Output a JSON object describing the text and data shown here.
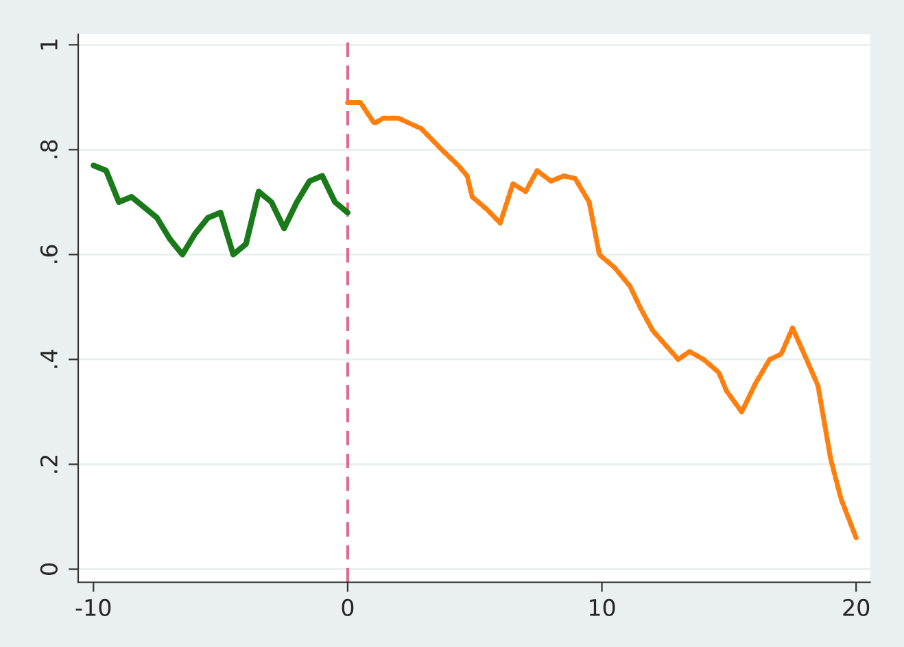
{
  "chart_data": {
    "type": "line",
    "xlim": [
      -10.6,
      20.55
    ],
    "ylim": [
      -0.025,
      1.02
    ],
    "xticks": [
      -10,
      0,
      10,
      20
    ],
    "yticks": [
      {
        "value": 0,
        "label": "0"
      },
      {
        "value": 0.2,
        "label": ".2"
      },
      {
        "value": 0.4,
        "label": ".4"
      },
      {
        "value": 0.6,
        "label": ".6"
      },
      {
        "value": 0.8,
        "label": ".8"
      },
      {
        "value": 1,
        "label": "1"
      }
    ],
    "grid": "y",
    "legend": false,
    "series": [
      {
        "color": "#1a7a1a",
        "line_style": "solid",
        "x": [
          -10,
          -9.5,
          -9,
          -8.5,
          -8,
          -7.5,
          -7,
          -6.5,
          -6,
          -5.5,
          -5,
          -4.5,
          -4,
          -3.5,
          -3,
          -2.5,
          -2,
          -1.5,
          -1,
          -0.5,
          0
        ],
        "values": [
          0.77,
          0.76,
          0.7,
          0.71,
          0.69,
          0.67,
          0.63,
          0.6,
          0.64,
          0.67,
          0.68,
          0.6,
          0.62,
          0.72,
          0.7,
          0.65,
          0.7,
          0.74,
          0.75,
          0.7,
          0.68
        ]
      },
      {
        "color": "#ff7f0e",
        "line_style": "dotted",
        "x": [
          0,
          0.5,
          1.05,
          1.4,
          2.0,
          2.9,
          3.7,
          4.35,
          4.7,
          4.9,
          5.5,
          6.0,
          6.5,
          7.0,
          7.45,
          8.0,
          8.5,
          8.95,
          9.5,
          9.9,
          10.5,
          11.1,
          11.55,
          12.0,
          12.55,
          13.0,
          13.45,
          14.0,
          14.6,
          14.9,
          15.5,
          16.05,
          16.6,
          17.05,
          17.5,
          18.05,
          18.5,
          19.0,
          19.4,
          20
        ],
        "values": [
          0.89,
          0.89,
          0.85,
          0.86,
          0.86,
          0.84,
          0.8,
          0.77,
          0.75,
          0.71,
          0.685,
          0.66,
          0.735,
          0.72,
          0.76,
          0.74,
          0.75,
          0.745,
          0.7,
          0.6,
          0.575,
          0.54,
          0.495,
          0.455,
          0.425,
          0.4,
          0.415,
          0.4,
          0.375,
          0.34,
          0.3,
          0.355,
          0.4,
          0.41,
          0.46,
          0.4,
          0.35,
          0.21,
          0.135,
          0.06
        ]
      }
    ],
    "ref_lines": [
      {
        "axis": "x",
        "value": 0,
        "color": "#e06a8e",
        "line_style": "dashed"
      }
    ]
  }
}
